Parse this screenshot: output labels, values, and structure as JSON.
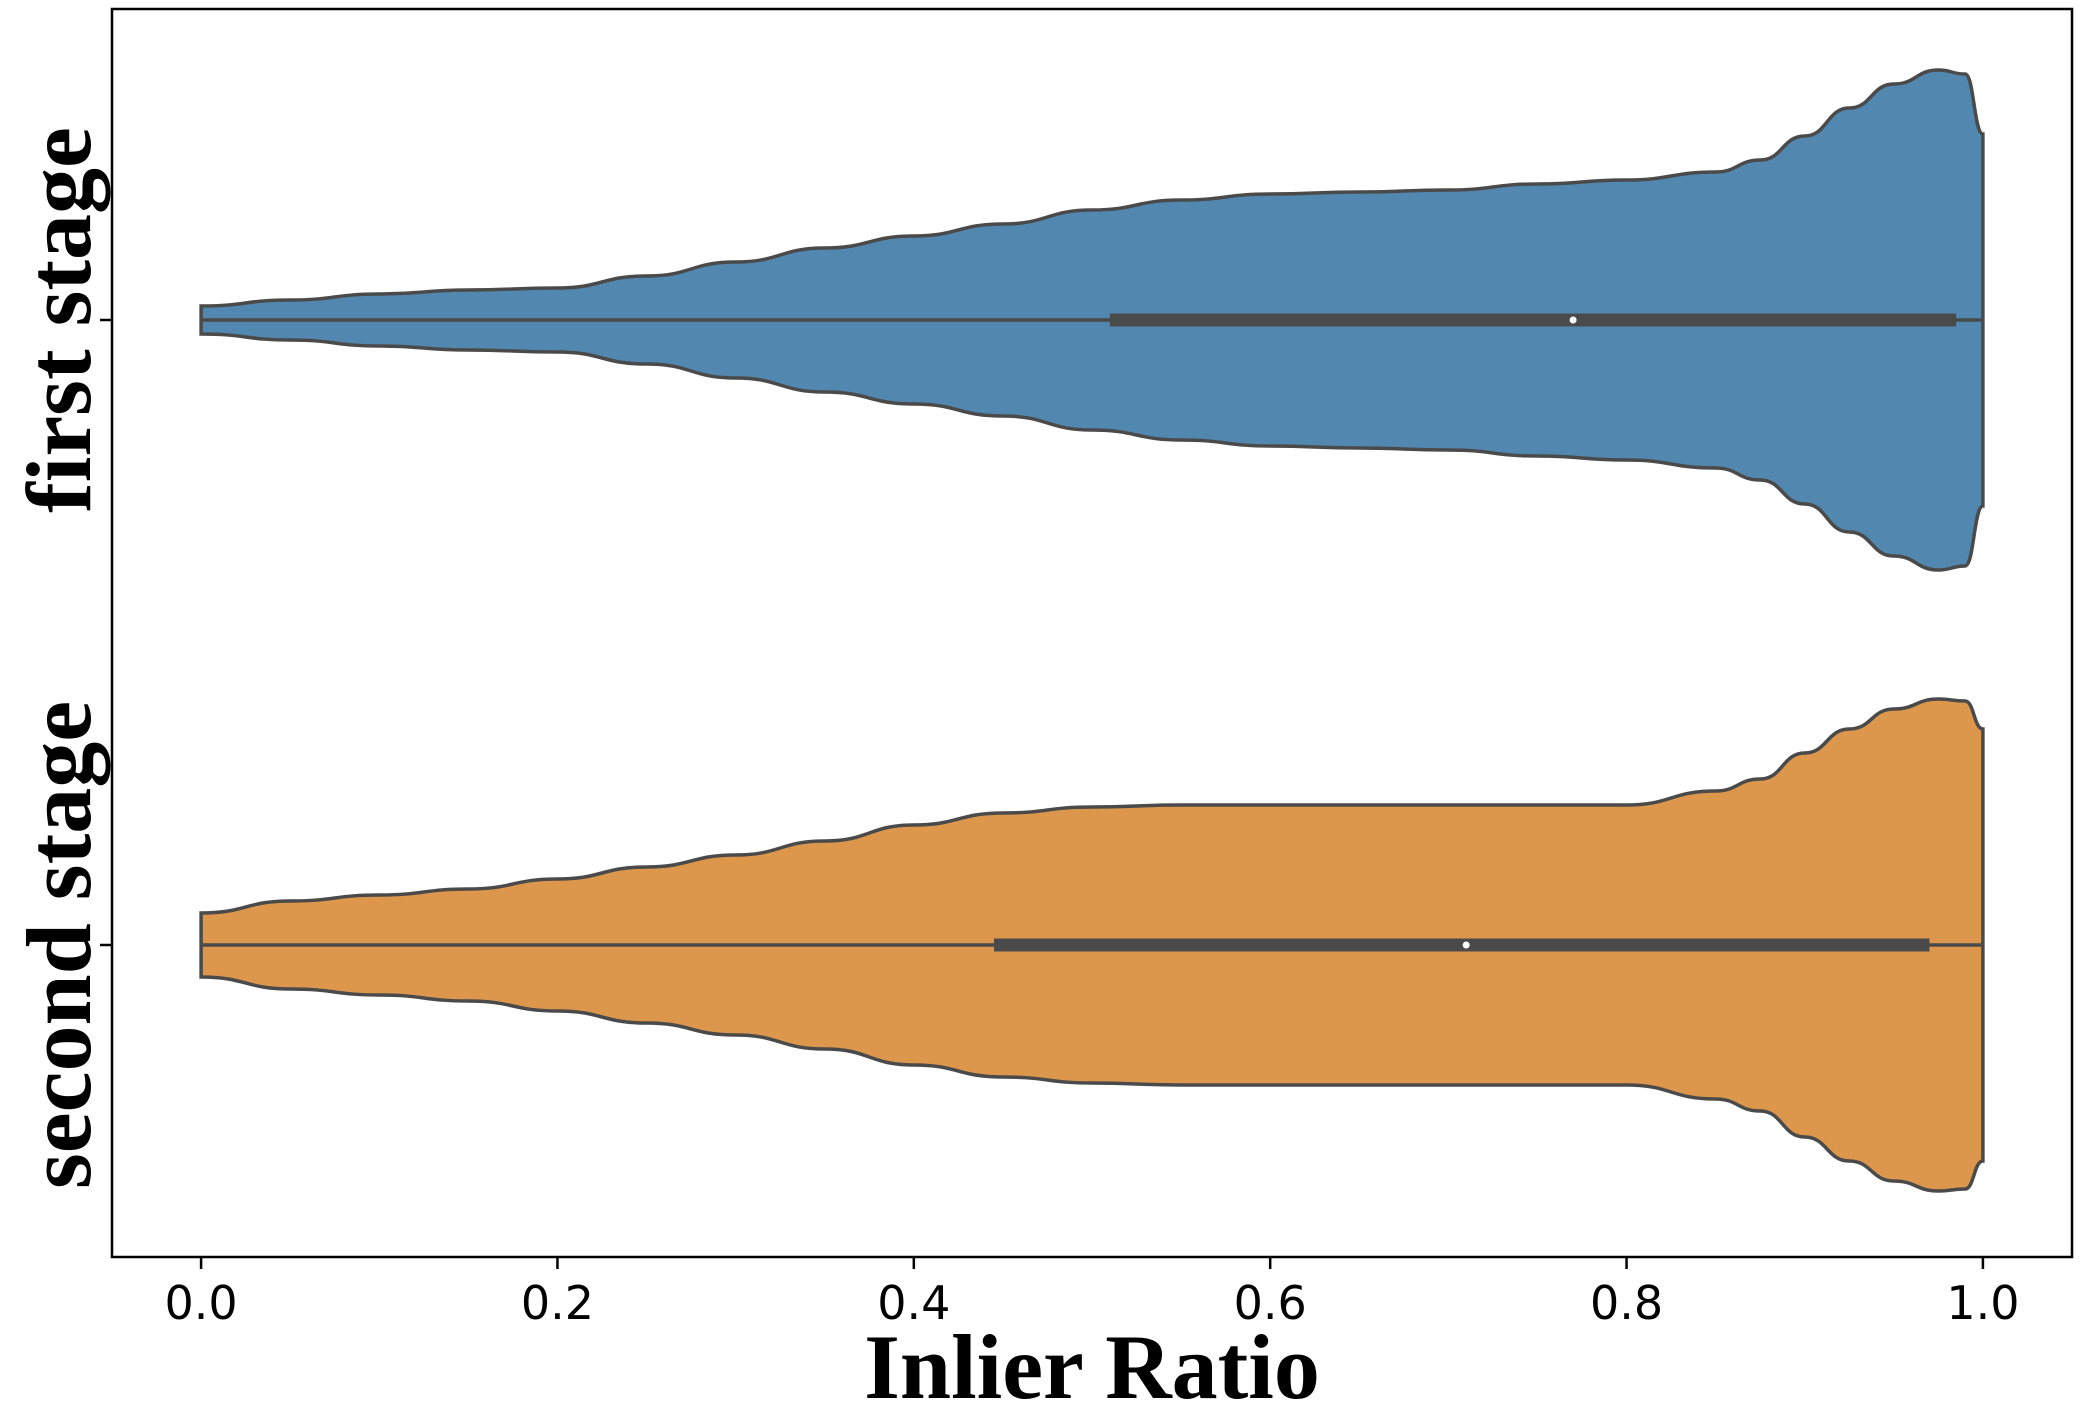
{
  "chart_data": {
    "type": "violin",
    "orientation": "horizontal",
    "title": "",
    "xlabel": "Inlier Ratio",
    "ylabel": "",
    "xlim": [
      -0.05,
      1.05
    ],
    "xticks": [
      0.0,
      0.2,
      0.4,
      0.6,
      0.8,
      1.0
    ],
    "xtick_labels": [
      "0.0",
      "0.2",
      "0.4",
      "0.6",
      "0.8",
      "1.0"
    ],
    "grid": false,
    "legend": "none",
    "outline_color": "#4a4a4a",
    "series": [
      {
        "name": "first stage",
        "color": "#5287b0",
        "median": 0.77,
        "q1": 0.51,
        "q3": 0.985,
        "whisker_low": 0.0,
        "whisker_high": 1.0,
        "density_x": [
          0.0,
          0.05,
          0.1,
          0.15,
          0.2,
          0.25,
          0.3,
          0.35,
          0.4,
          0.45,
          0.5,
          0.55,
          0.6,
          0.65,
          0.7,
          0.75,
          0.8,
          0.85,
          0.875,
          0.9,
          0.925,
          0.95,
          0.975,
          0.99,
          1.0
        ],
        "density": [
          0.07,
          0.1,
          0.13,
          0.15,
          0.16,
          0.22,
          0.29,
          0.36,
          0.42,
          0.48,
          0.55,
          0.6,
          0.63,
          0.64,
          0.65,
          0.68,
          0.7,
          0.74,
          0.8,
          0.92,
          1.06,
          1.18,
          1.25,
          1.23,
          0.93
        ]
      },
      {
        "name": "second stage",
        "color": "#dd974d",
        "median": 0.71,
        "q1": 0.445,
        "q3": 0.97,
        "whisker_low": 0.0,
        "whisker_high": 1.0,
        "density_x": [
          0.0,
          0.05,
          0.1,
          0.15,
          0.2,
          0.25,
          0.3,
          0.35,
          0.4,
          0.45,
          0.5,
          0.55,
          0.6,
          0.65,
          0.7,
          0.75,
          0.8,
          0.85,
          0.875,
          0.9,
          0.925,
          0.95,
          0.975,
          0.99,
          1.0
        ],
        "density": [
          0.16,
          0.22,
          0.25,
          0.28,
          0.33,
          0.39,
          0.45,
          0.52,
          0.6,
          0.66,
          0.69,
          0.7,
          0.7,
          0.7,
          0.7,
          0.7,
          0.7,
          0.77,
          0.83,
          0.96,
          1.08,
          1.18,
          1.23,
          1.22,
          1.08
        ]
      }
    ]
  }
}
